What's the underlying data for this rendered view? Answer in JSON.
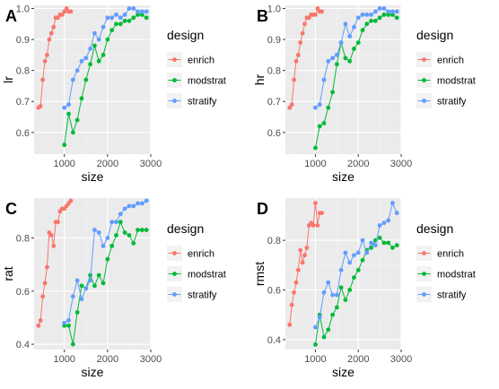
{
  "legend": {
    "title": "design",
    "entries": [
      "enrich",
      "modstrat",
      "stratify"
    ]
  },
  "colors": {
    "enrich": "#f8766d",
    "modstrat": "#00ba38",
    "stratify": "#619cff",
    "panel_bg": "#ebebeb",
    "grid_major": "#ffffff",
    "grid_minor": "#f4f4f4"
  },
  "chart_data": [
    {
      "type": "line",
      "panel_letter": "A",
      "xlabel": "size",
      "ylabel": "lr",
      "xlim": [
        300,
        3000
      ],
      "ylim": [
        0.53,
        1.01
      ],
      "x_ticks": [
        1000,
        2000,
        3000
      ],
      "x_tick_labels": [
        "1000",
        "2000",
        "3000"
      ],
      "y_ticks": [
        0.6,
        0.7,
        0.8,
        0.9,
        1.0
      ],
      "y_tick_labels": [
        "0.6",
        "0.7",
        "0.8",
        "0.9",
        "1.0"
      ],
      "grid": true,
      "legend_position": "right",
      "series": [
        {
          "name": "enrich",
          "x": [
            400,
            450,
            500,
            550,
            600,
            650,
            700,
            750,
            800,
            850,
            900,
            950,
            1000,
            1050,
            1100,
            1150
          ],
          "y": [
            0.68,
            0.685,
            0.77,
            0.83,
            0.85,
            0.9,
            0.92,
            0.94,
            0.97,
            0.97,
            0.98,
            0.98,
            0.99,
            1.0,
            0.99,
            0.99
          ]
        },
        {
          "name": "modstrat",
          "x": [
            1000,
            1100,
            1200,
            1300,
            1400,
            1500,
            1600,
            1700,
            1800,
            1900,
            2000,
            2100,
            2200,
            2300,
            2400,
            2500,
            2600,
            2700,
            2800,
            2900
          ],
          "y": [
            0.56,
            0.66,
            0.6,
            0.64,
            0.71,
            0.77,
            0.82,
            0.88,
            0.83,
            0.85,
            0.9,
            0.93,
            0.95,
            0.95,
            0.96,
            0.96,
            0.97,
            0.98,
            0.98,
            0.97
          ]
        },
        {
          "name": "stratify",
          "x": [
            1000,
            1100,
            1200,
            1300,
            1400,
            1500,
            1600,
            1700,
            1800,
            1900,
            2000,
            2100,
            2200,
            2300,
            2400,
            2500,
            2600,
            2700,
            2800,
            2900
          ],
          "y": [
            0.68,
            0.69,
            0.77,
            0.8,
            0.83,
            0.84,
            0.87,
            0.92,
            0.9,
            0.94,
            0.97,
            0.97,
            0.98,
            0.97,
            0.98,
            1.0,
            1.0,
            0.99,
            0.99,
            0.99
          ]
        }
      ]
    },
    {
      "type": "line",
      "panel_letter": "B",
      "xlabel": "size",
      "ylabel": "hr",
      "xlim": [
        300,
        3000
      ],
      "ylim": [
        0.53,
        1.01
      ],
      "x_ticks": [
        1000,
        2000,
        3000
      ],
      "x_tick_labels": [
        "1000",
        "2000",
        "3000"
      ],
      "y_ticks": [
        0.6,
        0.7,
        0.8,
        0.9,
        1.0
      ],
      "y_tick_labels": [
        "0.6",
        "0.7",
        "0.8",
        "0.9",
        "1.0"
      ],
      "grid": true,
      "legend_position": "right",
      "series": [
        {
          "name": "enrich",
          "x": [
            400,
            450,
            500,
            550,
            600,
            650,
            700,
            750,
            800,
            850,
            900,
            950,
            1000,
            1050,
            1100,
            1150
          ],
          "y": [
            0.68,
            0.69,
            0.77,
            0.83,
            0.85,
            0.89,
            0.92,
            0.95,
            0.97,
            0.97,
            0.98,
            0.98,
            0.98,
            1.0,
            0.99,
            0.99
          ]
        },
        {
          "name": "modstrat",
          "x": [
            1000,
            1100,
            1200,
            1300,
            1400,
            1500,
            1600,
            1700,
            1800,
            1900,
            2000,
            2100,
            2200,
            2300,
            2400,
            2500,
            2600,
            2700,
            2800,
            2900
          ],
          "y": [
            0.55,
            0.62,
            0.63,
            0.68,
            0.73,
            0.82,
            0.89,
            0.84,
            0.83,
            0.87,
            0.89,
            0.93,
            0.95,
            0.96,
            0.96,
            0.97,
            0.98,
            0.98,
            0.98,
            0.97
          ]
        },
        {
          "name": "stratify",
          "x": [
            1000,
            1100,
            1200,
            1300,
            1400,
            1500,
            1600,
            1700,
            1800,
            1900,
            2000,
            2100,
            2200,
            2300,
            2400,
            2500,
            2600,
            2700,
            2800,
            2900
          ],
          "y": [
            0.68,
            0.69,
            0.77,
            0.83,
            0.84,
            0.85,
            0.89,
            0.95,
            0.91,
            0.94,
            0.97,
            0.98,
            0.98,
            0.98,
            0.99,
            1.0,
            1.0,
            0.99,
            0.99,
            0.99
          ]
        }
      ]
    },
    {
      "type": "line",
      "panel_letter": "C",
      "xlabel": "size",
      "ylabel": "rat",
      "xlim": [
        300,
        3000
      ],
      "ylim": [
        0.38,
        0.95
      ],
      "x_ticks": [
        1000,
        2000,
        3000
      ],
      "x_tick_labels": [
        "1000",
        "2000",
        "3000"
      ],
      "y_ticks": [
        0.4,
        0.6,
        0.8
      ],
      "y_tick_labels": [
        "0.4",
        "0.6",
        "0.8"
      ],
      "grid": true,
      "legend_position": "right",
      "series": [
        {
          "name": "enrich",
          "x": [
            400,
            450,
            500,
            550,
            600,
            650,
            700,
            750,
            800,
            850,
            900,
            950,
            1000,
            1050,
            1100,
            1150
          ],
          "y": [
            0.47,
            0.49,
            0.58,
            0.63,
            0.69,
            0.82,
            0.81,
            0.77,
            0.86,
            0.86,
            0.9,
            0.91,
            0.91,
            0.92,
            0.93,
            0.94
          ]
        },
        {
          "name": "modstrat",
          "x": [
            1000,
            1100,
            1200,
            1300,
            1400,
            1500,
            1600,
            1700,
            1800,
            1900,
            2000,
            2100,
            2200,
            2300,
            2400,
            2500,
            2600,
            2700,
            2800,
            2900
          ],
          "y": [
            0.47,
            0.47,
            0.4,
            0.52,
            0.62,
            0.61,
            0.66,
            0.62,
            0.66,
            0.63,
            0.72,
            0.77,
            0.81,
            0.86,
            0.82,
            0.81,
            0.78,
            0.83,
            0.83,
            0.83
          ]
        },
        {
          "name": "stratify",
          "x": [
            1000,
            1100,
            1200,
            1300,
            1400,
            1500,
            1600,
            1700,
            1800,
            1900,
            2000,
            2100,
            2200,
            2300,
            2400,
            2500,
            2600,
            2700,
            2800,
            2900
          ],
          "y": [
            0.48,
            0.49,
            0.58,
            0.64,
            0.57,
            0.61,
            0.64,
            0.83,
            0.82,
            0.77,
            0.8,
            0.86,
            0.86,
            0.89,
            0.91,
            0.92,
            0.92,
            0.93,
            0.93,
            0.94
          ]
        }
      ]
    },
    {
      "type": "line",
      "panel_letter": "D",
      "xlabel": "size",
      "ylabel": "rmst",
      "xlim": [
        300,
        3000
      ],
      "ylim": [
        0.36,
        0.97
      ],
      "x_ticks": [
        1000,
        2000,
        3000
      ],
      "x_tick_labels": [
        "1000",
        "2000",
        "3000"
      ],
      "y_ticks": [
        0.4,
        0.6,
        0.8
      ],
      "y_tick_labels": [
        "0.4",
        "0.6",
        "0.8"
      ],
      "grid": true,
      "legend_position": "right",
      "series": [
        {
          "name": "enrich",
          "x": [
            400,
            450,
            500,
            550,
            600,
            650,
            700,
            750,
            800,
            850,
            900,
            950,
            1000,
            1050,
            1100,
            1150
          ],
          "y": [
            0.46,
            0.54,
            0.59,
            0.63,
            0.68,
            0.76,
            0.71,
            0.74,
            0.77,
            0.86,
            0.87,
            0.86,
            0.95,
            0.86,
            0.91,
            0.91
          ]
        },
        {
          "name": "modstrat",
          "x": [
            1000,
            1100,
            1200,
            1300,
            1400,
            1500,
            1600,
            1700,
            1800,
            1900,
            2000,
            2100,
            2200,
            2300,
            2400,
            2500,
            2600,
            2700,
            2800,
            2900
          ],
          "y": [
            0.38,
            0.5,
            0.41,
            0.44,
            0.5,
            0.53,
            0.61,
            0.56,
            0.6,
            0.65,
            0.68,
            0.72,
            0.76,
            0.77,
            0.8,
            0.81,
            0.79,
            0.79,
            0.77,
            0.78
          ]
        },
        {
          "name": "stratify",
          "x": [
            1000,
            1100,
            1200,
            1300,
            1400,
            1500,
            1600,
            1700,
            1800,
            1900,
            2000,
            2100,
            2200,
            2300,
            2400,
            2500,
            2600,
            2700,
            2800,
            2900
          ],
          "y": [
            0.45,
            0.49,
            0.59,
            0.63,
            0.58,
            0.58,
            0.68,
            0.75,
            0.71,
            0.74,
            0.75,
            0.8,
            0.75,
            0.79,
            0.78,
            0.86,
            0.87,
            0.88,
            0.95,
            0.91
          ]
        }
      ]
    }
  ]
}
